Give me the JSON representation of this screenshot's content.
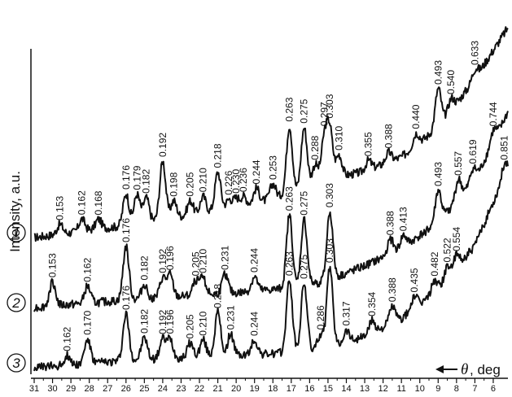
{
  "chart_data": {
    "type": "line",
    "title": "",
    "ylabel": "Intensity, a.u.",
    "xlabel_symbol": "θ",
    "xlabel_unit": ", deg",
    "x_axis_reversed": true,
    "xlim": [
      31,
      5.2
    ],
    "x_ticks": [
      31,
      30,
      29,
      28,
      27,
      26,
      25,
      24,
      23,
      22,
      21,
      20,
      19,
      18,
      17,
      16,
      15,
      14,
      13,
      12,
      11,
      10,
      9,
      8,
      7,
      6
    ],
    "grid": false,
    "legend": "none",
    "series": [
      {
        "name": "1",
        "baseline": [
          [
            31,
            0.0
          ],
          [
            26,
            0.05
          ],
          [
            20,
            0.12
          ],
          [
            17,
            0.18
          ],
          [
            15,
            0.24
          ],
          [
            13,
            0.27
          ],
          [
            11,
            0.33
          ],
          [
            9,
            0.45
          ],
          [
            7,
            0.65
          ],
          [
            5.2,
            0.86
          ]
        ],
        "peaks": [
          {
            "x": 29.6,
            "label": "0.153",
            "h": 0.04
          },
          {
            "x": 28.4,
            "label": "0.162",
            "h": 0.05
          },
          {
            "x": 27.5,
            "label": "0.168",
            "h": 0.04
          },
          {
            "x": 26.0,
            "label": "0.176",
            "h": 0.13
          },
          {
            "x": 25.4,
            "label": "0.179",
            "h": 0.12
          },
          {
            "x": 24.9,
            "label": "0.182",
            "h": 0.1
          },
          {
            "x": 24.0,
            "label": "0.192",
            "h": 0.24
          },
          {
            "x": 23.4,
            "label": "0.198",
            "h": 0.07
          },
          {
            "x": 22.5,
            "label": "0.205",
            "h": 0.06
          },
          {
            "x": 21.8,
            "label": "0.210",
            "h": 0.07
          },
          {
            "x": 21.0,
            "label": "0.218",
            "h": 0.16
          },
          {
            "x": 20.4,
            "label": "0.226",
            "h": 0.04
          },
          {
            "x": 20.0,
            "label": "0.230",
            "h": 0.04
          },
          {
            "x": 19.6,
            "label": "0.236",
            "h": 0.04
          },
          {
            "x": 18.9,
            "label": "0.244",
            "h": 0.06
          },
          {
            "x": 18.0,
            "label": "0.253",
            "h": 0.06
          },
          {
            "x": 17.1,
            "label": "0.263",
            "h": 0.28
          },
          {
            "x": 16.3,
            "label": "0.275",
            "h": 0.25
          },
          {
            "x": 15.7,
            "label": "0.288",
            "h": 0.08
          },
          {
            "x": 15.2,
            "label": "0.297",
            "h": 0.17
          },
          {
            "x": 14.9,
            "label": "0.303",
            "h": 0.2
          },
          {
            "x": 14.4,
            "label": "0.310",
            "h": 0.09
          },
          {
            "x": 12.8,
            "label": "0.355",
            "h": 0.04
          },
          {
            "x": 11.7,
            "label": "0.388",
            "h": 0.04
          },
          {
            "x": 10.2,
            "label": "0.440",
            "h": 0.05
          },
          {
            "x": 9.0,
            "label": "0.493",
            "h": 0.16
          },
          {
            "x": 8.3,
            "label": "0.540",
            "h": 0.05
          },
          {
            "x": 7.0,
            "label": "0.633",
            "h": 0.04
          }
        ]
      },
      {
        "name": "2",
        "baseline": [
          [
            31,
            0.0
          ],
          [
            26,
            0.03
          ],
          [
            20,
            0.06
          ],
          [
            17,
            0.08
          ],
          [
            15,
            0.11
          ],
          [
            13,
            0.17
          ],
          [
            11,
            0.24
          ],
          [
            9,
            0.35
          ],
          [
            7,
            0.52
          ],
          [
            5.2,
            0.8
          ]
        ],
        "peaks": [
          {
            "x": 30.0,
            "label": "0.153",
            "h": 0.1
          },
          {
            "x": 28.1,
            "label": "0.162",
            "h": 0.07
          },
          {
            "x": 26.0,
            "label": "0.176",
            "h": 0.22
          },
          {
            "x": 25.0,
            "label": "0.182",
            "h": 0.06
          },
          {
            "x": 24.0,
            "label": "0.192",
            "h": 0.08
          },
          {
            "x": 23.6,
            "label": "0.196",
            "h": 0.09
          },
          {
            "x": 22.2,
            "label": "0.205",
            "h": 0.06
          },
          {
            "x": 21.8,
            "label": "0.210",
            "h": 0.07
          },
          {
            "x": 20.6,
            "label": "0.231",
            "h": 0.08
          },
          {
            "x": 19.0,
            "label": "0.244",
            "h": 0.06
          },
          {
            "x": 17.1,
            "label": "0.263",
            "h": 0.3
          },
          {
            "x": 16.3,
            "label": "0.275",
            "h": 0.27
          },
          {
            "x": 14.9,
            "label": "0.303",
            "h": 0.28
          },
          {
            "x": 11.6,
            "label": "0.388",
            "h": 0.06
          },
          {
            "x": 10.9,
            "label": "0.413",
            "h": 0.05
          },
          {
            "x": 9.0,
            "label": "0.493",
            "h": 0.13
          },
          {
            "x": 7.9,
            "label": "0.557",
            "h": 0.08
          },
          {
            "x": 7.1,
            "label": "0.619",
            "h": 0.06
          },
          {
            "x": 6.0,
            "label": "0.744",
            "h": 0.05
          }
        ]
      },
      {
        "name": "3",
        "baseline": [
          [
            31,
            0.0
          ],
          [
            26,
            0.03
          ],
          [
            20,
            0.05
          ],
          [
            17,
            0.06
          ],
          [
            15,
            0.08
          ],
          [
            13,
            0.13
          ],
          [
            11,
            0.2
          ],
          [
            9,
            0.32
          ],
          [
            7,
            0.5
          ],
          [
            5.2,
            0.82
          ]
        ],
        "peaks": [
          {
            "x": 29.2,
            "label": "0.162",
            "h": 0.04
          },
          {
            "x": 28.1,
            "label": "0.170",
            "h": 0.1
          },
          {
            "x": 26.0,
            "label": "0.176",
            "h": 0.19
          },
          {
            "x": 25.0,
            "label": "0.182",
            "h": 0.09
          },
          {
            "x": 24.0,
            "label": "0.192",
            "h": 0.08
          },
          {
            "x": 23.6,
            "label": "0.196",
            "h": 0.08
          },
          {
            "x": 22.5,
            "label": "0.205",
            "h": 0.06
          },
          {
            "x": 21.8,
            "label": "0.210",
            "h": 0.07
          },
          {
            "x": 21.0,
            "label": "0.218",
            "h": 0.18
          },
          {
            "x": 20.3,
            "label": "0.231",
            "h": 0.09
          },
          {
            "x": 19.0,
            "label": "0.244",
            "h": 0.06
          },
          {
            "x": 17.1,
            "label": "0.263",
            "h": 0.3
          },
          {
            "x": 16.3,
            "label": "0.275",
            "h": 0.28
          },
          {
            "x": 15.4,
            "label": "0.286",
            "h": 0.06
          },
          {
            "x": 14.9,
            "label": "0.303",
            "h": 0.33
          },
          {
            "x": 14.0,
            "label": "0.317",
            "h": 0.05
          },
          {
            "x": 12.6,
            "label": "0.354",
            "h": 0.05
          },
          {
            "x": 11.5,
            "label": "0.388",
            "h": 0.07
          },
          {
            "x": 10.3,
            "label": "0.435",
            "h": 0.05
          },
          {
            "x": 9.2,
            "label": "0.482",
            "h": 0.05
          },
          {
            "x": 8.5,
            "label": "0.522",
            "h": 0.05
          },
          {
            "x": 8.0,
            "label": "0.554",
            "h": 0.05
          },
          {
            "x": 5.4,
            "label": "0.851",
            "h": 0.05
          }
        ]
      }
    ]
  }
}
